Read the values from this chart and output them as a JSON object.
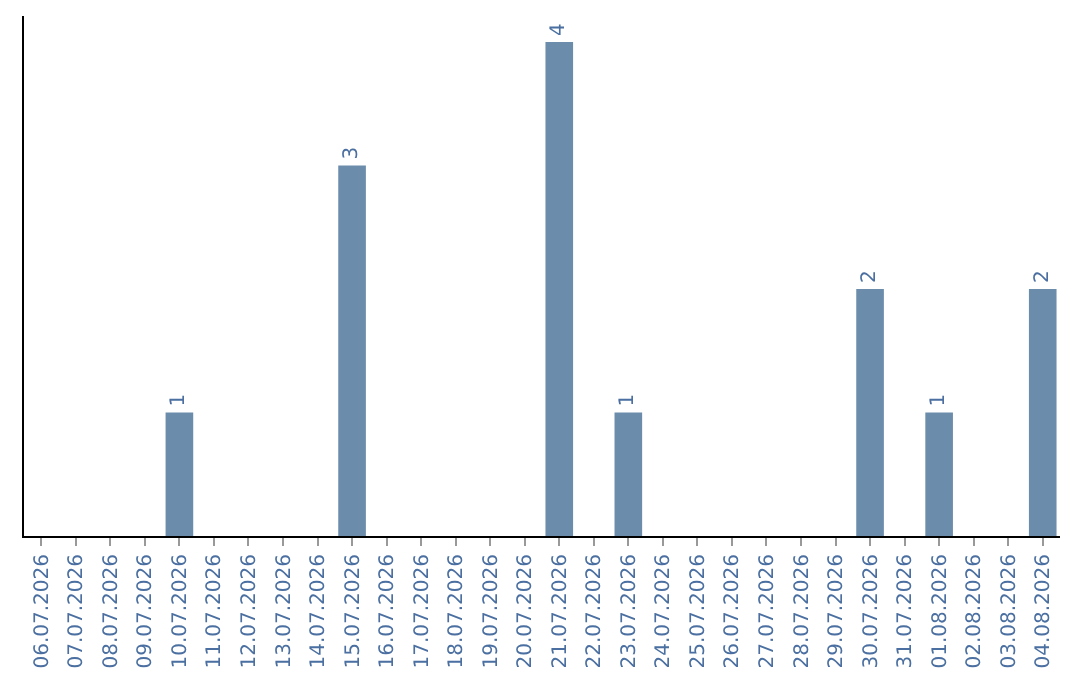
{
  "chart_data": {
    "type": "bar",
    "categories": [
      "06.07.2026",
      "07.07.2026",
      "08.07.2026",
      "09.07.2026",
      "10.07.2026",
      "11.07.2026",
      "12.07.2026",
      "13.07.2026",
      "14.07.2026",
      "15.07.2026",
      "16.07.2026",
      "17.07.2026",
      "18.07.2026",
      "19.07.2026",
      "20.07.2026",
      "21.07.2026",
      "22.07.2026",
      "23.07.2026",
      "24.07.2026",
      "25.07.2026",
      "26.07.2026",
      "27.07.2026",
      "28.07.2026",
      "29.07.2026",
      "30.07.2026",
      "31.07.2026",
      "01.08.2026",
      "02.08.2026",
      "03.08.2026",
      "04.08.2026"
    ],
    "values": [
      0,
      0,
      0,
      0,
      1,
      0,
      0,
      0,
      0,
      3,
      0,
      0,
      0,
      0,
      0,
      4,
      0,
      1,
      0,
      0,
      0,
      0,
      0,
      0,
      2,
      0,
      1,
      0,
      0,
      2
    ],
    "value_labels": [
      null,
      null,
      null,
      null,
      "1",
      null,
      null,
      null,
      null,
      "3",
      null,
      null,
      null,
      null,
      null,
      "4",
      null,
      "1",
      null,
      null,
      null,
      null,
      null,
      null,
      "2",
      null,
      "1",
      null,
      null,
      "2"
    ],
    "color": "#6b8cab",
    "tick_labels": "x"
  }
}
